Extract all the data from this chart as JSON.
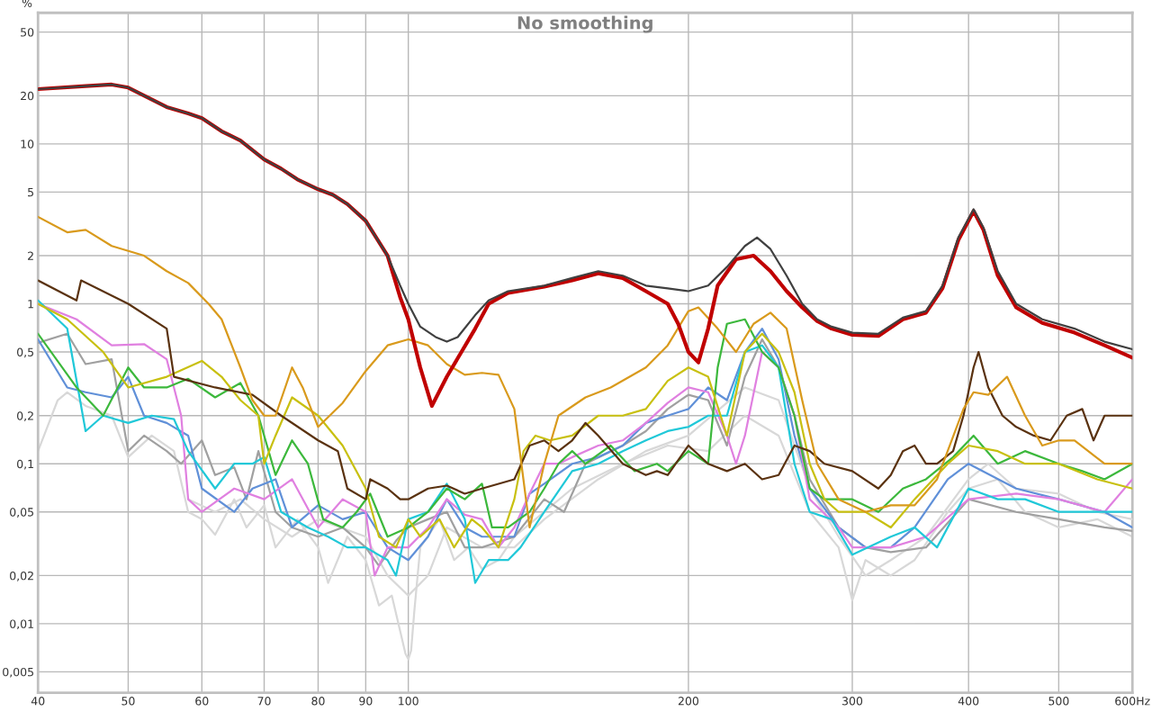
{
  "chart_data": {
    "type": "line",
    "title": "No smoothing",
    "ylabel": "%",
    "log": "xy",
    "grid": true,
    "legend": false,
    "marker": "none",
    "line_style": "solid",
    "xlim": [
      40,
      600
    ],
    "ylim": [
      0.0037,
      66
    ],
    "xticks": [
      40,
      50,
      60,
      70,
      80,
      90,
      100,
      200,
      300,
      400,
      500,
      {
        "value": 600,
        "label": "600Hz"
      }
    ],
    "yticks": [
      {
        "value": 0.005,
        "label": "0,005"
      },
      {
        "value": 0.01,
        "label": "0,01"
      },
      {
        "value": 0.02,
        "label": "0,02"
      },
      {
        "value": 0.05,
        "label": "0,05"
      },
      {
        "value": 0.1,
        "label": "0,1"
      },
      {
        "value": 0.2,
        "label": "0,2"
      },
      {
        "value": 0.5,
        "label": "0,5"
      },
      1,
      2,
      5,
      10,
      20,
      50
    ],
    "series": [
      {
        "color": "#d8d8d8",
        "x": [
          40,
          42,
          43,
          45,
          48,
          50,
          53,
          56,
          58,
          60,
          62,
          65,
          67,
          70,
          72,
          76,
          80,
          82,
          86,
          90,
          93,
          96,
          98,
          99.3,
          100,
          100.7,
          101.5,
          103,
          108,
          112,
          116,
          120,
          125,
          130,
          140,
          150,
          170,
          190,
          210,
          230,
          250,
          270,
          290,
          300,
          310,
          330,
          350,
          380,
          400,
          430,
          460,
          500,
          550,
          600
        ],
        "values": [
          0.12,
          0.25,
          0.28,
          0.23,
          0.2,
          0.11,
          0.15,
          0.12,
          0.05,
          0.045,
          0.036,
          0.06,
          0.04,
          0.055,
          0.03,
          0.045,
          0.03,
          0.018,
          0.035,
          0.025,
          0.013,
          0.015,
          0.009,
          0.0065,
          0.006,
          0.0068,
          0.012,
          0.03,
          0.045,
          0.025,
          0.03,
          0.022,
          0.025,
          0.035,
          0.05,
          0.07,
          0.1,
          0.13,
          0.12,
          0.2,
          0.15,
          0.05,
          0.03,
          0.014,
          0.025,
          0.02,
          0.025,
          0.05,
          0.07,
          0.08,
          0.05,
          0.04,
          0.045,
          0.035
        ]
      },
      {
        "color": "#d8d8d8",
        "x": [
          58,
          62,
          66,
          70,
          75,
          80,
          90,
          95,
          100,
          105,
          110,
          120,
          130,
          140,
          160,
          180,
          200,
          230,
          250,
          270,
          290,
          310,
          330,
          360,
          400,
          420,
          450,
          500,
          550,
          600
        ],
        "values": [
          0.06,
          0.05,
          0.06,
          0.045,
          0.035,
          0.045,
          0.035,
          0.02,
          0.015,
          0.02,
          0.04,
          0.03,
          0.03,
          0.045,
          0.08,
          0.12,
          0.15,
          0.3,
          0.25,
          0.07,
          0.035,
          0.02,
          0.025,
          0.035,
          0.08,
          0.1,
          0.07,
          0.065,
          0.05,
          0.045
        ]
      },
      {
        "color": "#a0a0a0",
        "x": [
          40,
          43,
          45,
          48,
          50,
          52,
          55,
          57,
          60,
          62,
          65,
          67,
          69,
          72,
          75,
          80,
          85,
          90,
          93,
          97,
          100,
          105,
          110,
          115,
          120,
          130,
          140,
          147,
          155,
          170,
          180,
          190,
          200,
          210,
          220,
          230,
          240,
          250,
          260,
          270,
          290,
          310,
          330,
          360,
          400,
          450,
          500,
          560,
          600
        ],
        "values": [
          0.57,
          0.65,
          0.42,
          0.45,
          0.12,
          0.15,
          0.12,
          0.1,
          0.14,
          0.085,
          0.095,
          0.06,
          0.12,
          0.05,
          0.04,
          0.035,
          0.04,
          0.03,
          0.023,
          0.033,
          0.04,
          0.045,
          0.05,
          0.03,
          0.03,
          0.035,
          0.06,
          0.05,
          0.1,
          0.13,
          0.16,
          0.22,
          0.27,
          0.25,
          0.13,
          0.35,
          0.6,
          0.4,
          0.2,
          0.08,
          0.04,
          0.03,
          0.028,
          0.03,
          0.06,
          0.05,
          0.045,
          0.04,
          0.038
        ]
      },
      {
        "color": "#6090d8",
        "x": [
          40,
          43,
          45,
          48,
          50,
          52,
          55,
          58,
          60,
          65,
          68,
          72,
          75,
          80,
          85,
          90,
          95,
          100,
          105,
          110,
          115,
          120,
          130,
          135,
          140,
          150,
          160,
          170,
          180,
          190,
          200,
          210,
          220,
          230,
          240,
          250,
          260,
          270,
          290,
          310,
          330,
          350,
          380,
          400,
          450,
          500,
          560,
          600
        ],
        "values": [
          0.6,
          0.3,
          0.28,
          0.26,
          0.35,
          0.2,
          0.18,
          0.15,
          0.07,
          0.05,
          0.07,
          0.08,
          0.04,
          0.055,
          0.045,
          0.05,
          0.03,
          0.025,
          0.035,
          0.06,
          0.04,
          0.035,
          0.035,
          0.065,
          0.075,
          0.1,
          0.11,
          0.13,
          0.18,
          0.2,
          0.22,
          0.3,
          0.25,
          0.5,
          0.7,
          0.45,
          0.15,
          0.07,
          0.04,
          0.03,
          0.03,
          0.04,
          0.08,
          0.1,
          0.07,
          0.06,
          0.05,
          0.04
        ]
      },
      {
        "color": "#e080e0",
        "x": [
          40,
          44,
          48,
          52,
          55,
          57,
          58,
          60,
          65,
          70,
          75,
          80,
          85,
          90,
          92,
          95,
          100,
          105,
          110,
          115,
          120,
          125,
          130,
          135,
          140,
          145,
          150,
          160,
          170,
          180,
          190,
          200,
          210,
          220,
          225,
          230,
          240,
          250,
          260,
          270,
          290,
          300,
          330,
          360,
          400,
          450,
          500,
          560,
          600
        ],
        "values": [
          1.0,
          0.8,
          0.55,
          0.56,
          0.45,
          0.2,
          0.06,
          0.05,
          0.07,
          0.06,
          0.08,
          0.04,
          0.06,
          0.05,
          0.02,
          0.03,
          0.03,
          0.04,
          0.06,
          0.048,
          0.045,
          0.03,
          0.04,
          0.065,
          0.1,
          0.1,
          0.11,
          0.13,
          0.14,
          0.18,
          0.24,
          0.3,
          0.28,
          0.15,
          0.1,
          0.15,
          0.5,
          0.4,
          0.2,
          0.06,
          0.04,
          0.03,
          0.03,
          0.035,
          0.06,
          0.065,
          0.06,
          0.05,
          0.08
        ]
      },
      {
        "color": "#20c8d8",
        "x": [
          40,
          43,
          45,
          47,
          50,
          53,
          56,
          58,
          62,
          65,
          68,
          70,
          73,
          78,
          82,
          86,
          90,
          95,
          97,
          100,
          105,
          110,
          115,
          118,
          122,
          128,
          132,
          140,
          150,
          160,
          170,
          180,
          190,
          200,
          210,
          220,
          230,
          240,
          250,
          260,
          270,
          285,
          300,
          330,
          350,
          370,
          400,
          430,
          460,
          500,
          550,
          600
        ],
        "values": [
          1.05,
          0.7,
          0.16,
          0.2,
          0.18,
          0.2,
          0.19,
          0.12,
          0.07,
          0.1,
          0.1,
          0.11,
          0.05,
          0.04,
          0.035,
          0.03,
          0.03,
          0.025,
          0.02,
          0.045,
          0.05,
          0.075,
          0.045,
          0.018,
          0.025,
          0.025,
          0.03,
          0.05,
          0.09,
          0.1,
          0.12,
          0.14,
          0.16,
          0.17,
          0.2,
          0.2,
          0.5,
          0.55,
          0.4,
          0.1,
          0.05,
          0.045,
          0.027,
          0.035,
          0.04,
          0.03,
          0.07,
          0.06,
          0.06,
          0.05,
          0.05,
          0.05
        ]
      },
      {
        "color": "#3cb83c",
        "x": [
          40,
          44,
          47,
          50,
          52,
          55,
          58,
          62,
          66,
          69,
          72,
          75,
          78,
          81,
          85,
          88,
          91,
          95,
          100,
          105,
          110,
          115,
          120,
          123,
          128,
          135,
          140,
          145,
          150,
          155,
          165,
          175,
          185,
          190,
          200,
          210,
          215,
          220,
          230,
          240,
          250,
          260,
          270,
          280,
          300,
          320,
          340,
          360,
          385,
          405,
          430,
          460,
          500,
          530,
          560,
          600
        ],
        "values": [
          0.65,
          0.3,
          0.2,
          0.4,
          0.3,
          0.3,
          0.34,
          0.26,
          0.32,
          0.2,
          0.085,
          0.14,
          0.1,
          0.045,
          0.04,
          0.05,
          0.065,
          0.035,
          0.04,
          0.05,
          0.07,
          0.06,
          0.075,
          0.04,
          0.04,
          0.05,
          0.07,
          0.1,
          0.12,
          0.1,
          0.13,
          0.09,
          0.1,
          0.09,
          0.12,
          0.1,
          0.4,
          0.75,
          0.8,
          0.5,
          0.4,
          0.2,
          0.07,
          0.06,
          0.06,
          0.05,
          0.07,
          0.08,
          0.11,
          0.15,
          0.1,
          0.12,
          0.1,
          0.09,
          0.08,
          0.1
        ]
      },
      {
        "color": "#c8c010",
        "x": [
          40,
          43,
          47,
          50,
          55,
          60,
          63,
          66,
          69,
          70,
          72,
          75,
          80,
          85,
          90,
          93,
          97,
          100,
          103,
          108,
          112,
          117,
          120,
          125,
          130,
          133,
          137,
          142,
          150,
          160,
          170,
          180,
          190,
          200,
          210,
          220,
          230,
          240,
          250,
          260,
          270,
          280,
          290,
          310,
          330,
          350,
          380,
          400,
          430,
          460,
          500,
          550,
          600
        ],
        "values": [
          1.0,
          0.8,
          0.5,
          0.3,
          0.35,
          0.44,
          0.35,
          0.25,
          0.2,
          0.1,
          0.15,
          0.26,
          0.2,
          0.13,
          0.07,
          0.035,
          0.03,
          0.045,
          0.035,
          0.045,
          0.03,
          0.045,
          0.04,
          0.03,
          0.06,
          0.12,
          0.15,
          0.14,
          0.15,
          0.2,
          0.2,
          0.22,
          0.33,
          0.4,
          0.35,
          0.15,
          0.5,
          0.65,
          0.5,
          0.28,
          0.1,
          0.06,
          0.05,
          0.05,
          0.04,
          0.06,
          0.1,
          0.13,
          0.12,
          0.1,
          0.1,
          0.08,
          0.07
        ]
      },
      {
        "color": "#5a3210",
        "x": [
          40,
          44,
          44.5,
          50,
          55,
          56,
          62,
          68,
          73,
          80,
          84,
          86,
          90,
          91,
          95,
          98,
          100,
          105,
          110,
          115,
          120,
          130,
          135,
          140,
          145,
          150,
          155,
          160,
          170,
          180,
          185,
          190,
          200,
          210,
          220,
          230,
          240,
          250,
          260,
          270,
          280,
          300,
          320,
          330,
          340,
          350,
          360,
          370,
          385,
          395,
          405,
          410,
          420,
          435,
          450,
          470,
          490,
          510,
          530,
          545,
          560,
          580,
          600
        ],
        "values": [
          1.4,
          1.05,
          1.4,
          1.0,
          0.7,
          0.35,
          0.3,
          0.27,
          0.2,
          0.14,
          0.12,
          0.07,
          0.06,
          0.08,
          0.07,
          0.06,
          0.06,
          0.07,
          0.073,
          0.065,
          0.07,
          0.08,
          0.13,
          0.14,
          0.12,
          0.14,
          0.18,
          0.15,
          0.1,
          0.085,
          0.09,
          0.085,
          0.13,
          0.1,
          0.09,
          0.1,
          0.08,
          0.085,
          0.13,
          0.12,
          0.1,
          0.09,
          0.07,
          0.085,
          0.12,
          0.13,
          0.1,
          0.1,
          0.12,
          0.2,
          0.4,
          0.5,
          0.3,
          0.2,
          0.17,
          0.15,
          0.14,
          0.2,
          0.22,
          0.14,
          0.2,
          0.2,
          0.2
        ]
      },
      {
        "color": "#d99a1c",
        "x": [
          40,
          43,
          45,
          48,
          52,
          55,
          58,
          61,
          63,
          66,
          68,
          70,
          72,
          75,
          77,
          80,
          85,
          90,
          95,
          100,
          105,
          110,
          115,
          120,
          125,
          130,
          135,
          140,
          145,
          155,
          165,
          180,
          190,
          200,
          205,
          215,
          225,
          235,
          245,
          255,
          265,
          275,
          290,
          310,
          330,
          350,
          370,
          395,
          405,
          420,
          440,
          460,
          480,
          500,
          520,
          560,
          600
        ],
        "values": [
          3.5,
          2.8,
          2.9,
          2.3,
          2.0,
          1.6,
          1.35,
          1.0,
          0.8,
          0.4,
          0.25,
          0.2,
          0.2,
          0.4,
          0.3,
          0.17,
          0.24,
          0.38,
          0.55,
          0.6,
          0.55,
          0.42,
          0.36,
          0.37,
          0.36,
          0.22,
          0.04,
          0.1,
          0.2,
          0.26,
          0.3,
          0.4,
          0.55,
          0.9,
          0.95,
          0.7,
          0.5,
          0.75,
          0.88,
          0.7,
          0.25,
          0.1,
          0.06,
          0.05,
          0.055,
          0.055,
          0.08,
          0.22,
          0.28,
          0.27,
          0.35,
          0.2,
          0.13,
          0.14,
          0.14,
          0.1,
          0.1
        ]
      },
      {
        "color": "#c00000",
        "x": [
          40,
          45,
          48,
          50,
          55,
          58,
          60,
          63,
          66,
          70,
          73,
          76,
          80,
          83,
          86,
          90,
          95,
          98,
          100,
          103,
          106,
          110,
          118,
          122,
          128,
          140,
          150,
          160,
          170,
          180,
          190,
          195,
          200,
          205,
          210,
          215,
          225,
          235,
          245,
          255,
          265,
          275,
          285,
          300,
          320,
          340,
          360,
          375,
          390,
          405,
          415,
          430,
          450,
          480,
          520,
          560,
          600
        ],
        "values": [
          22,
          23,
          23.5,
          22.5,
          17,
          15.5,
          14.5,
          12,
          10.5,
          8,
          7,
          6,
          5.2,
          4.8,
          4.2,
          3.3,
          2,
          1.1,
          0.8,
          0.4,
          0.23,
          0.35,
          0.7,
          1.0,
          1.17,
          1.28,
          1.4,
          1.55,
          1.45,
          1.2,
          1.0,
          0.75,
          0.5,
          0.43,
          0.7,
          1.3,
          1.9,
          2.0,
          1.6,
          1.2,
          0.95,
          0.78,
          0.7,
          0.64,
          0.63,
          0.8,
          0.88,
          1.25,
          2.5,
          3.8,
          2.9,
          1.5,
          0.95,
          0.76,
          0.66,
          0.55,
          0.46
        ]
      },
      {
        "color": "#404040",
        "x": [
          40,
          45,
          48,
          50,
          55,
          58,
          60,
          63,
          66,
          70,
          73,
          76,
          80,
          83,
          86,
          90,
          95,
          98,
          100,
          103,
          107,
          110,
          113,
          118,
          122,
          128,
          140,
          150,
          160,
          170,
          180,
          190,
          200,
          210,
          220,
          230,
          237,
          245,
          255,
          265,
          275,
          285,
          300,
          320,
          340,
          360,
          375,
          390,
          405,
          415,
          430,
          450,
          480,
          520,
          560,
          600
        ],
        "values": [
          22,
          23,
          23.5,
          22.5,
          17,
          15.5,
          14.5,
          12,
          10.5,
          8,
          7,
          6,
          5.2,
          4.8,
          4.2,
          3.3,
          2,
          1.3,
          1.0,
          0.72,
          0.62,
          0.58,
          0.62,
          0.85,
          1.05,
          1.2,
          1.3,
          1.45,
          1.6,
          1.5,
          1.3,
          1.25,
          1.2,
          1.3,
          1.7,
          2.3,
          2.6,
          2.2,
          1.5,
          1.0,
          0.8,
          0.72,
          0.66,
          0.65,
          0.82,
          0.9,
          1.3,
          2.6,
          3.9,
          3.0,
          1.6,
          1.0,
          0.8,
          0.7,
          0.58,
          0.52
        ]
      }
    ]
  }
}
